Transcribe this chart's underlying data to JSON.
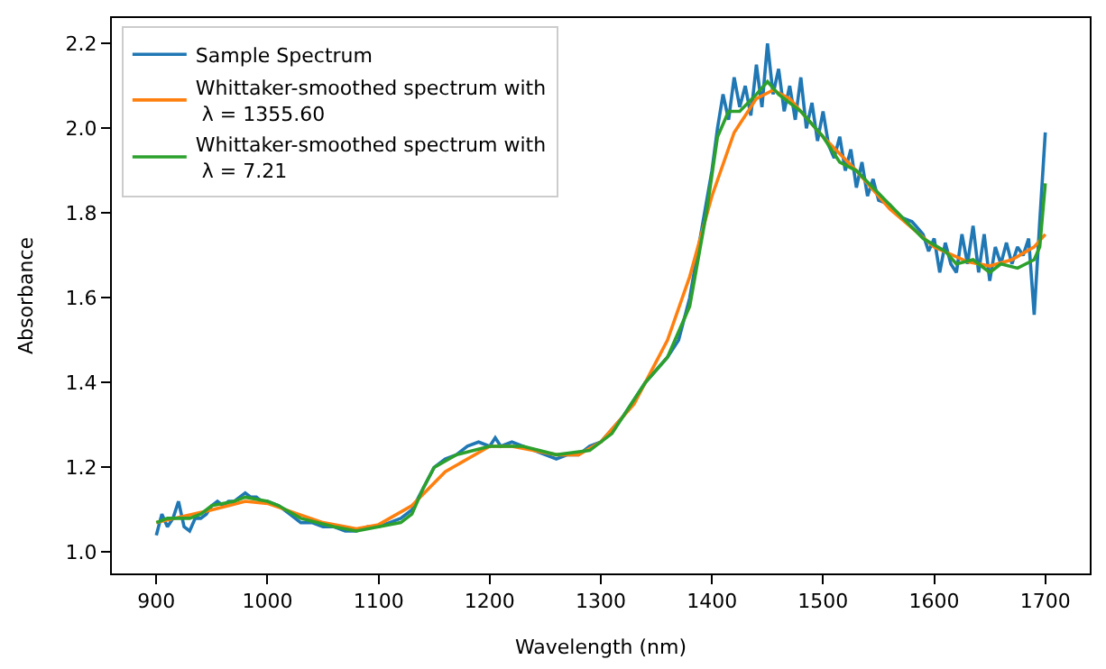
{
  "chart_data": {
    "type": "line",
    "xlabel": "Wavelength (nm)",
    "ylabel": "Absorbance",
    "xlim": [
      860,
      1740
    ],
    "ylim": [
      0.95,
      2.26
    ],
    "xticks": [
      900,
      1000,
      1100,
      1200,
      1300,
      1400,
      1500,
      1600,
      1700
    ],
    "yticks": [
      {
        "value": 1.0,
        "label": "1.0"
      },
      1.2,
      1.4,
      1.6,
      1.8,
      {
        "value": 2.0,
        "label": "2.0"
      },
      2.2
    ],
    "legend": "top left",
    "marker": "none",
    "line_style": "solid",
    "series": [
      {
        "name": "Sample Spectrum",
        "color": "#1f77b4",
        "x": [
          900,
          905,
          910,
          915,
          920,
          925,
          930,
          935,
          940,
          945,
          950,
          955,
          960,
          965,
          970,
          975,
          980,
          985,
          990,
          995,
          1000,
          1010,
          1020,
          1030,
          1040,
          1050,
          1060,
          1070,
          1080,
          1090,
          1100,
          1110,
          1120,
          1130,
          1140,
          1150,
          1160,
          1170,
          1180,
          1190,
          1200,
          1205,
          1210,
          1220,
          1230,
          1240,
          1250,
          1260,
          1270,
          1280,
          1290,
          1300,
          1310,
          1320,
          1330,
          1340,
          1350,
          1360,
          1370,
          1380,
          1390,
          1400,
          1405,
          1410,
          1415,
          1420,
          1425,
          1430,
          1435,
          1440,
          1445,
          1450,
          1455,
          1460,
          1465,
          1470,
          1475,
          1480,
          1485,
          1490,
          1495,
          1500,
          1505,
          1510,
          1515,
          1520,
          1525,
          1530,
          1535,
          1540,
          1545,
          1550,
          1560,
          1570,
          1580,
          1590,
          1595,
          1600,
          1605,
          1610,
          1615,
          1620,
          1625,
          1630,
          1635,
          1640,
          1645,
          1650,
          1655,
          1660,
          1665,
          1670,
          1675,
          1680,
          1685,
          1690,
          1695,
          1700
        ],
        "values": [
          1.04,
          1.09,
          1.06,
          1.08,
          1.12,
          1.06,
          1.05,
          1.08,
          1.08,
          1.09,
          1.11,
          1.12,
          1.11,
          1.12,
          1.12,
          1.13,
          1.14,
          1.13,
          1.13,
          1.12,
          1.12,
          1.11,
          1.09,
          1.07,
          1.07,
          1.06,
          1.06,
          1.05,
          1.05,
          1.06,
          1.06,
          1.07,
          1.08,
          1.1,
          1.15,
          1.2,
          1.22,
          1.23,
          1.25,
          1.26,
          1.25,
          1.27,
          1.25,
          1.26,
          1.25,
          1.24,
          1.23,
          1.22,
          1.23,
          1.23,
          1.25,
          1.26,
          1.29,
          1.32,
          1.36,
          1.4,
          1.43,
          1.46,
          1.5,
          1.6,
          1.75,
          1.9,
          2.0,
          2.08,
          2.02,
          2.12,
          2.05,
          2.1,
          2.03,
          2.15,
          2.05,
          2.2,
          2.08,
          2.14,
          2.04,
          2.1,
          2.02,
          2.12,
          2.0,
          2.06,
          1.97,
          2.04,
          1.96,
          1.93,
          1.98,
          1.9,
          1.95,
          1.86,
          1.92,
          1.84,
          1.88,
          1.83,
          1.82,
          1.79,
          1.78,
          1.75,
          1.71,
          1.74,
          1.66,
          1.73,
          1.68,
          1.66,
          1.75,
          1.68,
          1.77,
          1.66,
          1.75,
          1.64,
          1.72,
          1.68,
          1.73,
          1.68,
          1.72,
          1.7,
          1.74,
          1.56,
          1.78,
          1.99
        ]
      },
      {
        "name": "Whittaker-smoothed spectrum with\n λ = 1355.60",
        "color": "#ff7f0e",
        "x": [
          900,
          950,
          980,
          1000,
          1050,
          1080,
          1100,
          1130,
          1160,
          1200,
          1220,
          1260,
          1280,
          1300,
          1330,
          1360,
          1380,
          1400,
          1420,
          1440,
          1455,
          1470,
          1500,
          1530,
          1560,
          1600,
          1630,
          1650,
          1670,
          1690,
          1700
        ],
        "values": [
          1.07,
          1.1,
          1.12,
          1.115,
          1.07,
          1.055,
          1.065,
          1.11,
          1.19,
          1.25,
          1.25,
          1.23,
          1.23,
          1.26,
          1.35,
          1.5,
          1.65,
          1.84,
          1.99,
          2.07,
          2.09,
          2.07,
          1.98,
          1.9,
          1.81,
          1.72,
          1.685,
          1.675,
          1.69,
          1.72,
          1.75
        ]
      },
      {
        "name": "Whittaker-smoothed spectrum with\n λ = 7.21",
        "color": "#2ca02c",
        "x": [
          900,
          910,
          920,
          930,
          940,
          950,
          970,
          980,
          1000,
          1010,
          1030,
          1060,
          1080,
          1100,
          1120,
          1130,
          1140,
          1150,
          1170,
          1200,
          1230,
          1260,
          1290,
          1310,
          1340,
          1360,
          1380,
          1395,
          1405,
          1415,
          1425,
          1440,
          1450,
          1460,
          1480,
          1500,
          1515,
          1530,
          1560,
          1590,
          1610,
          1620,
          1635,
          1650,
          1660,
          1675,
          1690,
          1695,
          1700
        ],
        "values": [
          1.07,
          1.08,
          1.08,
          1.08,
          1.09,
          1.11,
          1.12,
          1.13,
          1.12,
          1.11,
          1.08,
          1.06,
          1.05,
          1.06,
          1.07,
          1.09,
          1.15,
          1.2,
          1.23,
          1.25,
          1.25,
          1.23,
          1.24,
          1.28,
          1.4,
          1.46,
          1.58,
          1.8,
          1.98,
          2.04,
          2.04,
          2.08,
          2.11,
          2.08,
          2.04,
          1.98,
          1.92,
          1.9,
          1.82,
          1.74,
          1.71,
          1.68,
          1.69,
          1.66,
          1.68,
          1.67,
          1.69,
          1.72,
          1.87
        ]
      }
    ]
  }
}
